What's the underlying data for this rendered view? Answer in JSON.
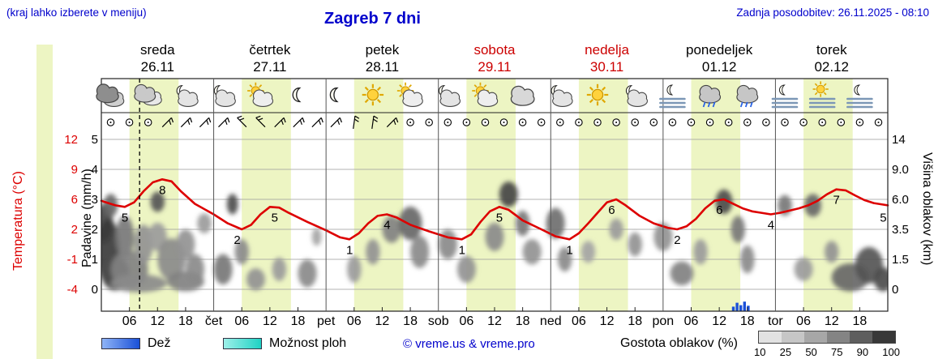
{
  "header": {
    "hint": "(kraj lahko izberete v meniju)",
    "title": "Zagreb 7 dni",
    "updated": "Zadnja posodobitev: 26.11.2025 - 08:10"
  },
  "colors": {
    "link_blue": "#0000cc",
    "red": "#dd0000",
    "band": "#edf5c3",
    "rain": "#1a50d8",
    "showers": "#1fd2c4"
  },
  "days": [
    {
      "name": "sreda",
      "date": "26.11",
      "highlight": false
    },
    {
      "name": "četrtek",
      "date": "27.11",
      "highlight": false
    },
    {
      "name": "petek",
      "date": "28.11",
      "highlight": false
    },
    {
      "name": "sobota",
      "date": "29.11",
      "highlight": true
    },
    {
      "name": "nedelja",
      "date": "30.11",
      "highlight": true
    },
    {
      "name": "ponedeljek",
      "date": "01.12",
      "highlight": false
    },
    {
      "name": "torek",
      "date": "02.12",
      "highlight": false
    }
  ],
  "axes": {
    "temperature": {
      "label": "Temperatura (°C)",
      "ticks": [
        12,
        9,
        6,
        2,
        -1,
        -4
      ]
    },
    "precip": {
      "label": "Padavine (mm/h)",
      "ticks": [
        5,
        4,
        3,
        2,
        1,
        0
      ]
    },
    "cloud_height": {
      "label": "Višina oblakov (km)",
      "ticks": [
        "14",
        "9.0",
        "6.0",
        "3.5",
        "1.5",
        "0"
      ]
    }
  },
  "x_axis": {
    "hour_labels": [
      "06",
      "12",
      "18"
    ],
    "day_abbrevs": [
      "čet",
      "pet",
      "sob",
      "ned",
      "pon",
      "tor"
    ]
  },
  "legend": {
    "rain_label": "Dež",
    "showers_label": "Možnost ploh",
    "copyright": "© vreme.us & vreme.pro",
    "density_label": "Gostota oblakov (%)",
    "density_ticks": [
      "10",
      "25",
      "50",
      "75",
      "90",
      "100"
    ],
    "density_colors": [
      "#e2e2e2",
      "#c6c6c6",
      "#a7a7a7",
      "#848484",
      "#5e5e5e",
      "#383838"
    ]
  },
  "chart_data": {
    "type": "meteogram",
    "hours_total": 168,
    "now_hour": 8.17,
    "daylight": {
      "start": 6,
      "end": 16.5
    },
    "temperature_points": [
      [
        0,
        5.8
      ],
      [
        3,
        5.2
      ],
      [
        5,
        5
      ],
      [
        7,
        5.6
      ],
      [
        9,
        6.8
      ],
      [
        11,
        7.7
      ],
      [
        13,
        8
      ],
      [
        15,
        7.8
      ],
      [
        17,
        6.8
      ],
      [
        20,
        5.4
      ],
      [
        24,
        4
      ],
      [
        27,
        2.8
      ],
      [
        30,
        2
      ],
      [
        32,
        2.6
      ],
      [
        34,
        4
      ],
      [
        36,
        5
      ],
      [
        38,
        4.9
      ],
      [
        40,
        4.2
      ],
      [
        44,
        3
      ],
      [
        48,
        1.9
      ],
      [
        51,
        1.2
      ],
      [
        53,
        1
      ],
      [
        55,
        1.6
      ],
      [
        57,
        2.8
      ],
      [
        59,
        3.8
      ],
      [
        61,
        4
      ],
      [
        63,
        3.6
      ],
      [
        66,
        2.6
      ],
      [
        70,
        1.8
      ],
      [
        74,
        1.2
      ],
      [
        77,
        1
      ],
      [
        79,
        1.5
      ],
      [
        81,
        3
      ],
      [
        83,
        4.4
      ],
      [
        85,
        5
      ],
      [
        87,
        4.6
      ],
      [
        90,
        3.2
      ],
      [
        94,
        2
      ],
      [
        97,
        1.3
      ],
      [
        100,
        1
      ],
      [
        102,
        1.6
      ],
      [
        104,
        2.8
      ],
      [
        106,
        4.2
      ],
      [
        108,
        5.6
      ],
      [
        110,
        6
      ],
      [
        112,
        5.2
      ],
      [
        115,
        3.8
      ],
      [
        118,
        2.8
      ],
      [
        121,
        2.2
      ],
      [
        123,
        2
      ],
      [
        125,
        2.4
      ],
      [
        127,
        3.4
      ],
      [
        129,
        4.8
      ],
      [
        131,
        5.8
      ],
      [
        133,
        6
      ],
      [
        135,
        5.4
      ],
      [
        137,
        4.8
      ],
      [
        139,
        4.4
      ],
      [
        141,
        4.2
      ],
      [
        143,
        4
      ],
      [
        145,
        4.2
      ],
      [
        147,
        4.5
      ],
      [
        149,
        4.8
      ],
      [
        151,
        5.2
      ],
      [
        153,
        5.8
      ],
      [
        155,
        6.5
      ],
      [
        157,
        7
      ],
      [
        159,
        6.9
      ],
      [
        161,
        6.4
      ],
      [
        163,
        5.9
      ],
      [
        165,
        5.5
      ],
      [
        168,
        5.2
      ]
    ],
    "temperature_labels": [
      {
        "h": 5,
        "v": 5
      },
      {
        "h": 13,
        "v": 8
      },
      {
        "h": 29,
        "v": 2
      },
      {
        "h": 37,
        "v": 5
      },
      {
        "h": 53,
        "v": 1
      },
      {
        "h": 61,
        "v": 4
      },
      {
        "h": 77,
        "v": 1
      },
      {
        "h": 85,
        "v": 5
      },
      {
        "h": 100,
        "v": 1
      },
      {
        "h": 109,
        "v": 6
      },
      {
        "h": 123,
        "v": 2
      },
      {
        "h": 132,
        "v": 6
      },
      {
        "h": 143,
        "v": 4
      },
      {
        "h": 157,
        "v": 7
      },
      {
        "h": 167,
        "v": 5
      }
    ],
    "clouds": [
      [
        0.5,
        4,
        2,
        1.5,
        0.9
      ],
      [
        1.5,
        2,
        2.5,
        2,
        0.95
      ],
      [
        3,
        0.8,
        3,
        1,
        0.85
      ],
      [
        2,
        5.5,
        1.5,
        1,
        0.7
      ],
      [
        5,
        3,
        2,
        1.5,
        0.6
      ],
      [
        6,
        1,
        4,
        1,
        0.55
      ],
      [
        8,
        0.3,
        6,
        0.6,
        0.5
      ],
      [
        9,
        2.5,
        2,
        1.3,
        0.45
      ],
      [
        12,
        5.8,
        1.5,
        0.9,
        0.8
      ],
      [
        12,
        3,
        2,
        1,
        0.4
      ],
      [
        15,
        1.5,
        3,
        1.2,
        0.5
      ],
      [
        18,
        2.5,
        2,
        1,
        0.45
      ],
      [
        18,
        0.4,
        4,
        0.6,
        0.55
      ],
      [
        20,
        1,
        2,
        0.8,
        0.5
      ],
      [
        22,
        4,
        1.5,
        0.8,
        0.4
      ],
      [
        26,
        1,
        2,
        0.8,
        0.6
      ],
      [
        28,
        5.6,
        1.2,
        0.9,
        0.85
      ],
      [
        30,
        2,
        1.5,
        0.8,
        0.5
      ],
      [
        33,
        0.5,
        2,
        0.6,
        0.45
      ],
      [
        38,
        1,
        1.5,
        0.6,
        0.4
      ],
      [
        44,
        0.8,
        2,
        0.7,
        0.5
      ],
      [
        46,
        3,
        1,
        0.6,
        0.35
      ],
      [
        54,
        1,
        1.5,
        0.7,
        0.4
      ],
      [
        58,
        2,
        1.5,
        0.8,
        0.45
      ],
      [
        62,
        3.5,
        2,
        1,
        0.55
      ],
      [
        66,
        4,
        2.5,
        1.3,
        0.7
      ],
      [
        68,
        2,
        2,
        1,
        0.5
      ],
      [
        74,
        2.5,
        2,
        1,
        0.5
      ],
      [
        78,
        1,
        2,
        0.7,
        0.45
      ],
      [
        84,
        3,
        2,
        1,
        0.5
      ],
      [
        87,
        6.5,
        2,
        1.2,
        0.9
      ],
      [
        90,
        4,
        1.5,
        1,
        0.6
      ],
      [
        92,
        2,
        2,
        0.8,
        0.45
      ],
      [
        97,
        4,
        2,
        1.2,
        0.65
      ],
      [
        99,
        1.5,
        1.5,
        0.7,
        0.5
      ],
      [
        104,
        2,
        1.5,
        0.7,
        0.35
      ],
      [
        110,
        3.5,
        1.5,
        0.8,
        0.4
      ],
      [
        114,
        2.5,
        1.5,
        0.8,
        0.45
      ],
      [
        120,
        3,
        2,
        1,
        0.45
      ],
      [
        124,
        0.8,
        2.5,
        0.6,
        0.55
      ],
      [
        128,
        2,
        1.5,
        0.8,
        0.4
      ],
      [
        133,
        5.8,
        1.8,
        1.1,
        0.85
      ],
      [
        136,
        3.5,
        1.5,
        1,
        0.6
      ],
      [
        138,
        1.5,
        1.5,
        0.8,
        0.5
      ],
      [
        146,
        5.5,
        1.5,
        0.9,
        0.6
      ],
      [
        150,
        1,
        2,
        0.6,
        0.4
      ],
      [
        152,
        5.5,
        1.8,
        1,
        0.7
      ],
      [
        156,
        2,
        1.5,
        0.7,
        0.45
      ],
      [
        160,
        0.6,
        4,
        0.8,
        0.7
      ],
      [
        164,
        1.2,
        3,
        1,
        0.8
      ],
      [
        167,
        0.5,
        2,
        0.7,
        0.85
      ]
    ],
    "rain_bars": [
      [
        135,
        0.15
      ],
      [
        135.8,
        0.28
      ],
      [
        136.6,
        0.2
      ],
      [
        137.4,
        0.32
      ],
      [
        138.2,
        0.18
      ]
    ],
    "wind": [
      "o",
      "o",
      "o",
      "/",
      "/",
      "/",
      "/",
      "\\",
      "\\",
      "/",
      "/",
      "/",
      "/",
      "|",
      "|",
      "/",
      "o",
      "o",
      "o",
      "o",
      "o",
      "o",
      "o",
      "o",
      "o",
      "o",
      "o",
      "o",
      "o",
      "o",
      "o",
      "o",
      "o",
      "o",
      "o",
      "o",
      "o",
      "o",
      "o",
      "o",
      "o",
      "o"
    ],
    "icons": [
      "cloud-dark",
      "clouds",
      "moon-cloud",
      "moon-cloud",
      "sun-cloud",
      "moon",
      "moon",
      "sun",
      "sun-cloud",
      "moon-cloud",
      "sun-cloud",
      "cloud",
      "moon-cloud",
      "sun",
      "moon-cloud",
      "moon-fog",
      "cloud-drizzle",
      "cloud-drizzle",
      "moon-fog",
      "sun-fog",
      "moon-fog"
    ]
  }
}
